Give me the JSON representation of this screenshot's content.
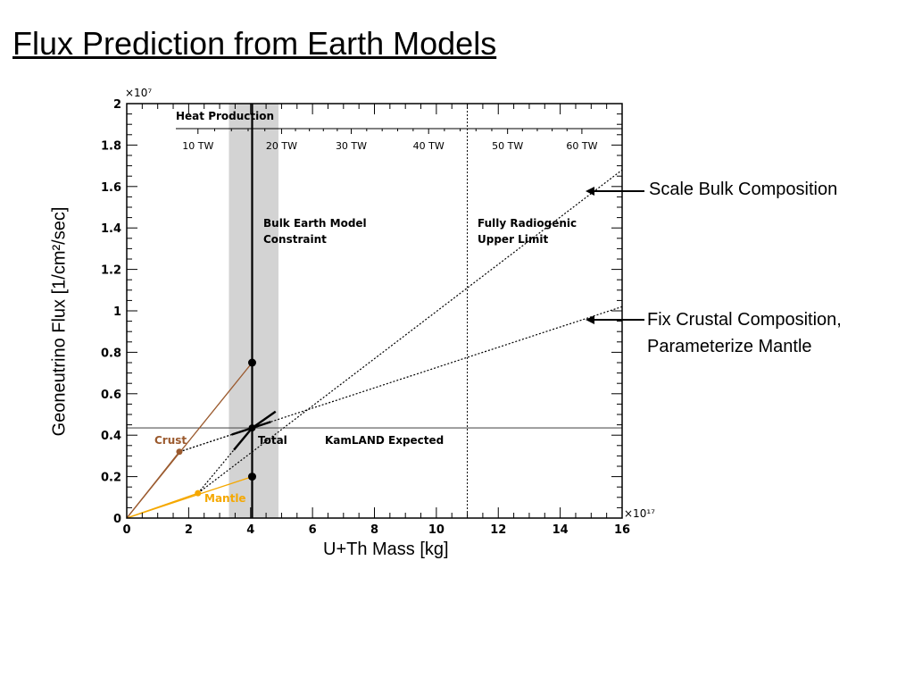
{
  "slide": {
    "title": "Flux Prediction from Earth Models"
  },
  "callouts": {
    "scale_bulk": "Scale Bulk Composition",
    "fix_crustal_line1": "Fix Crustal Composition,",
    "fix_crustal_line2": "Parameterize Mantle"
  },
  "colors": {
    "crust": "#9b5a2e",
    "mantle": "#f5a800",
    "band": "#d3d3d3",
    "line": "#000000"
  },
  "chart_data": {
    "type": "line",
    "xlabel": "U+Th Mass [kg]",
    "ylabel": "Geoneutrino Flux  [1/cm²/sec]",
    "x_multiplier": "×10¹⁷",
    "y_multiplier": "×10⁷",
    "xlim": [
      0,
      16
    ],
    "ylim": [
      0,
      2
    ],
    "x_ticks": [
      "0",
      "2",
      "4",
      "6",
      "8",
      "10",
      "12",
      "14",
      "16"
    ],
    "y_ticks": [
      "0",
      "0.2",
      "0.4",
      "0.6",
      "0.8",
      "1",
      "1.2",
      "1.4",
      "1.6",
      "1.8",
      "2"
    ],
    "heat_production": {
      "title": "Heat Production",
      "ticks": [
        {
          "label": "10 TW",
          "x": 2.3
        },
        {
          "label": "20 TW",
          "x": 5.0
        },
        {
          "label": "30 TW",
          "x": 7.25
        },
        {
          "label": "40 TW",
          "x": 9.75
        },
        {
          "label": "50 TW",
          "x": 12.3
        },
        {
          "label": "60 TW",
          "x": 14.7
        }
      ]
    },
    "bulk_earth_band": {
      "x_range": [
        3.3,
        4.9
      ],
      "center_x": 4.05,
      "label": "Bulk Earth Model Constraint"
    },
    "radiogenic_limit": {
      "x": 11,
      "label": "Fully Radiogenic Upper Limit"
    },
    "kamland_expected": {
      "y": 0.435,
      "label": "KamLAND Expected"
    },
    "series": [
      {
        "name": "Crust",
        "x": [
          0,
          1.7
        ],
        "y": [
          0,
          0.32
        ]
      },
      {
        "name": "Mantle",
        "x": [
          0,
          2.3
        ],
        "y": [
          0,
          0.12
        ]
      },
      {
        "name": "Total",
        "x": [
          4.05
        ],
        "y": [
          0.435
        ]
      },
      {
        "x": [
          0,
          4.05
        ],
        "y": [
          0,
          0.75
        ]
      },
      {
        "x": [
          0,
          4.05
        ],
        "y": [
          0,
          0.2
        ]
      },
      {
        "x": [
          1.7,
          16
        ],
        "y": [
          0.32,
          1.02
        ]
      },
      {
        "x": [
          2.3,
          16
        ],
        "y": [
          0.12,
          1.68
        ]
      }
    ],
    "vertical_bar": {
      "x": 4.05,
      "y_points": [
        0.2,
        0.75
      ],
      "y_range": [
        0,
        2
      ]
    }
  }
}
